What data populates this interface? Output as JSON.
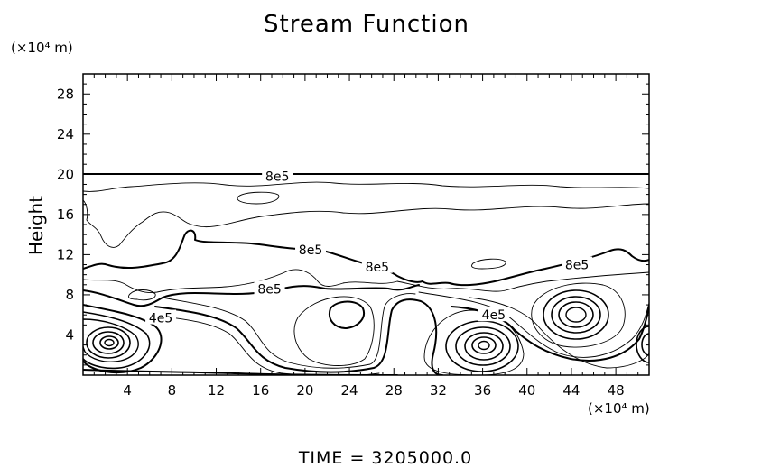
{
  "chart_data": {
    "type": "contour",
    "title": "Stream Function",
    "ylabel": "Height",
    "x_unit": "(×10⁴ m)",
    "y_unit": "(×10⁴ m)",
    "xlim": [
      0,
      51
    ],
    "ylim": [
      0,
      30
    ],
    "x_ticks": [
      "4",
      "8",
      "12",
      "16",
      "20",
      "24",
      "28",
      "32",
      "36",
      "40",
      "44",
      "48"
    ],
    "y_ticks": [
      "4",
      "8",
      "12",
      "16",
      "20",
      "24",
      "28"
    ],
    "grid": false,
    "contour_labels": [
      {
        "text": "8e5",
        "x": 17.5,
        "y": 19.8
      },
      {
        "text": "8e5",
        "x": 20.5,
        "y": 12.5
      },
      {
        "text": "8e5",
        "x": 26.5,
        "y": 10.8
      },
      {
        "text": "8e5",
        "x": 16.8,
        "y": 8.6
      },
      {
        "text": "8e5",
        "x": 44.5,
        "y": 11.0
      },
      {
        "text": "4e5",
        "x": 7.0,
        "y": 5.7
      },
      {
        "text": "4e5",
        "x": 37.0,
        "y": 6.0
      }
    ],
    "footer": "TIME  =  3205000.0"
  }
}
